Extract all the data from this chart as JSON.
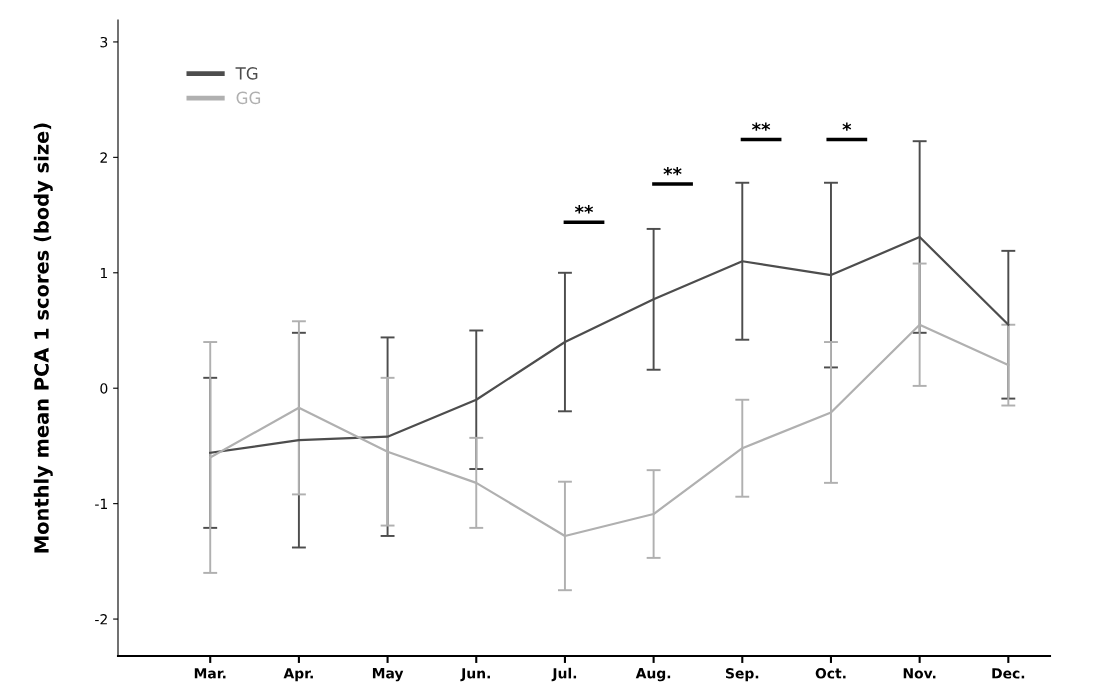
{
  "chart_data": {
    "type": "line",
    "ylabel": "Monthly mean PCA 1 scores (body size)",
    "categories": [
      "Mar.",
      "Apr.",
      "May",
      "Jun.",
      "Jul.",
      "Aug.",
      "Sep.",
      "Oct.",
      "Nov.",
      "Dec."
    ],
    "series": [
      {
        "name": "TG",
        "color": "#4d4d4d",
        "values": [
          -0.56,
          -0.45,
          -0.42,
          -0.1,
          0.4,
          0.77,
          1.1,
          0.98,
          1.31,
          0.55
        ],
        "errors": [
          0.65,
          0.93,
          0.86,
          0.6,
          0.6,
          0.61,
          0.68,
          0.8,
          0.83,
          0.64
        ]
      },
      {
        "name": "GG",
        "color": "#b0b0b0",
        "values": [
          -0.6,
          -0.17,
          -0.55,
          -0.82,
          -1.28,
          -1.09,
          -0.52,
          -0.21,
          0.55,
          0.2
        ],
        "errors": [
          1.0,
          0.75,
          0.64,
          0.39,
          0.47,
          0.38,
          0.42,
          0.61,
          0.53,
          0.35
        ]
      }
    ],
    "ylim": [
      -2.32,
      3.19
    ],
    "yticks": [
      -2,
      -1,
      0,
      1,
      2,
      3
    ],
    "grid": false,
    "legend": "top left",
    "marker": "none",
    "line_style": "solid",
    "annotations": [
      "**",
      "**",
      "**",
      "*"
    ]
  }
}
